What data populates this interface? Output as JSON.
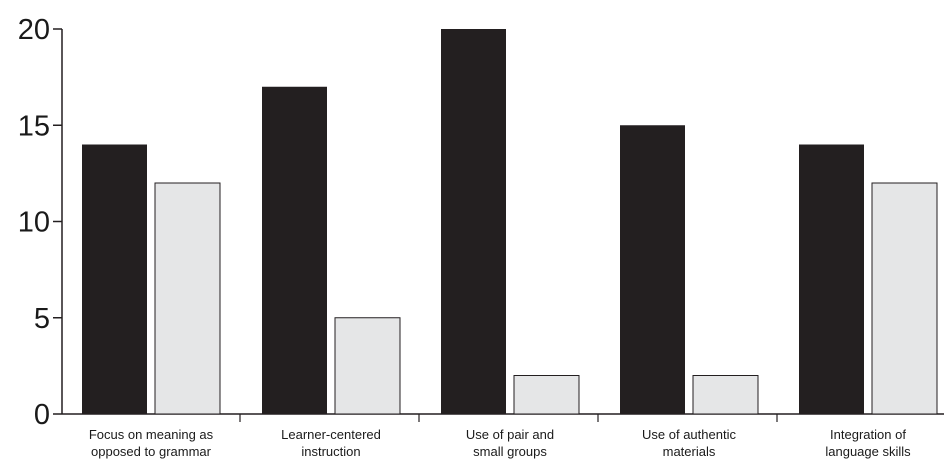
{
  "chart_data": {
    "type": "bar",
    "title": "",
    "xlabel": "",
    "ylabel": "",
    "ylim": [
      0,
      20
    ],
    "yticks": [
      0,
      5,
      10,
      15,
      20
    ],
    "grid": false,
    "legend": "none",
    "categories": [
      [
        "Focus on meaning as",
        "opposed to grammar"
      ],
      [
        "Learner-centered",
        "instruction"
      ],
      [
        "Use of pair and",
        "small groups"
      ],
      [
        "Use of authentic",
        "materials"
      ],
      [
        "Integration of",
        "language skills"
      ]
    ],
    "series": [
      {
        "values": [
          14,
          17,
          20,
          15,
          14
        ],
        "color": "#231f20"
      },
      {
        "values": [
          12,
          5,
          2,
          2,
          12
        ],
        "color": "#e5e6e7"
      }
    ]
  }
}
